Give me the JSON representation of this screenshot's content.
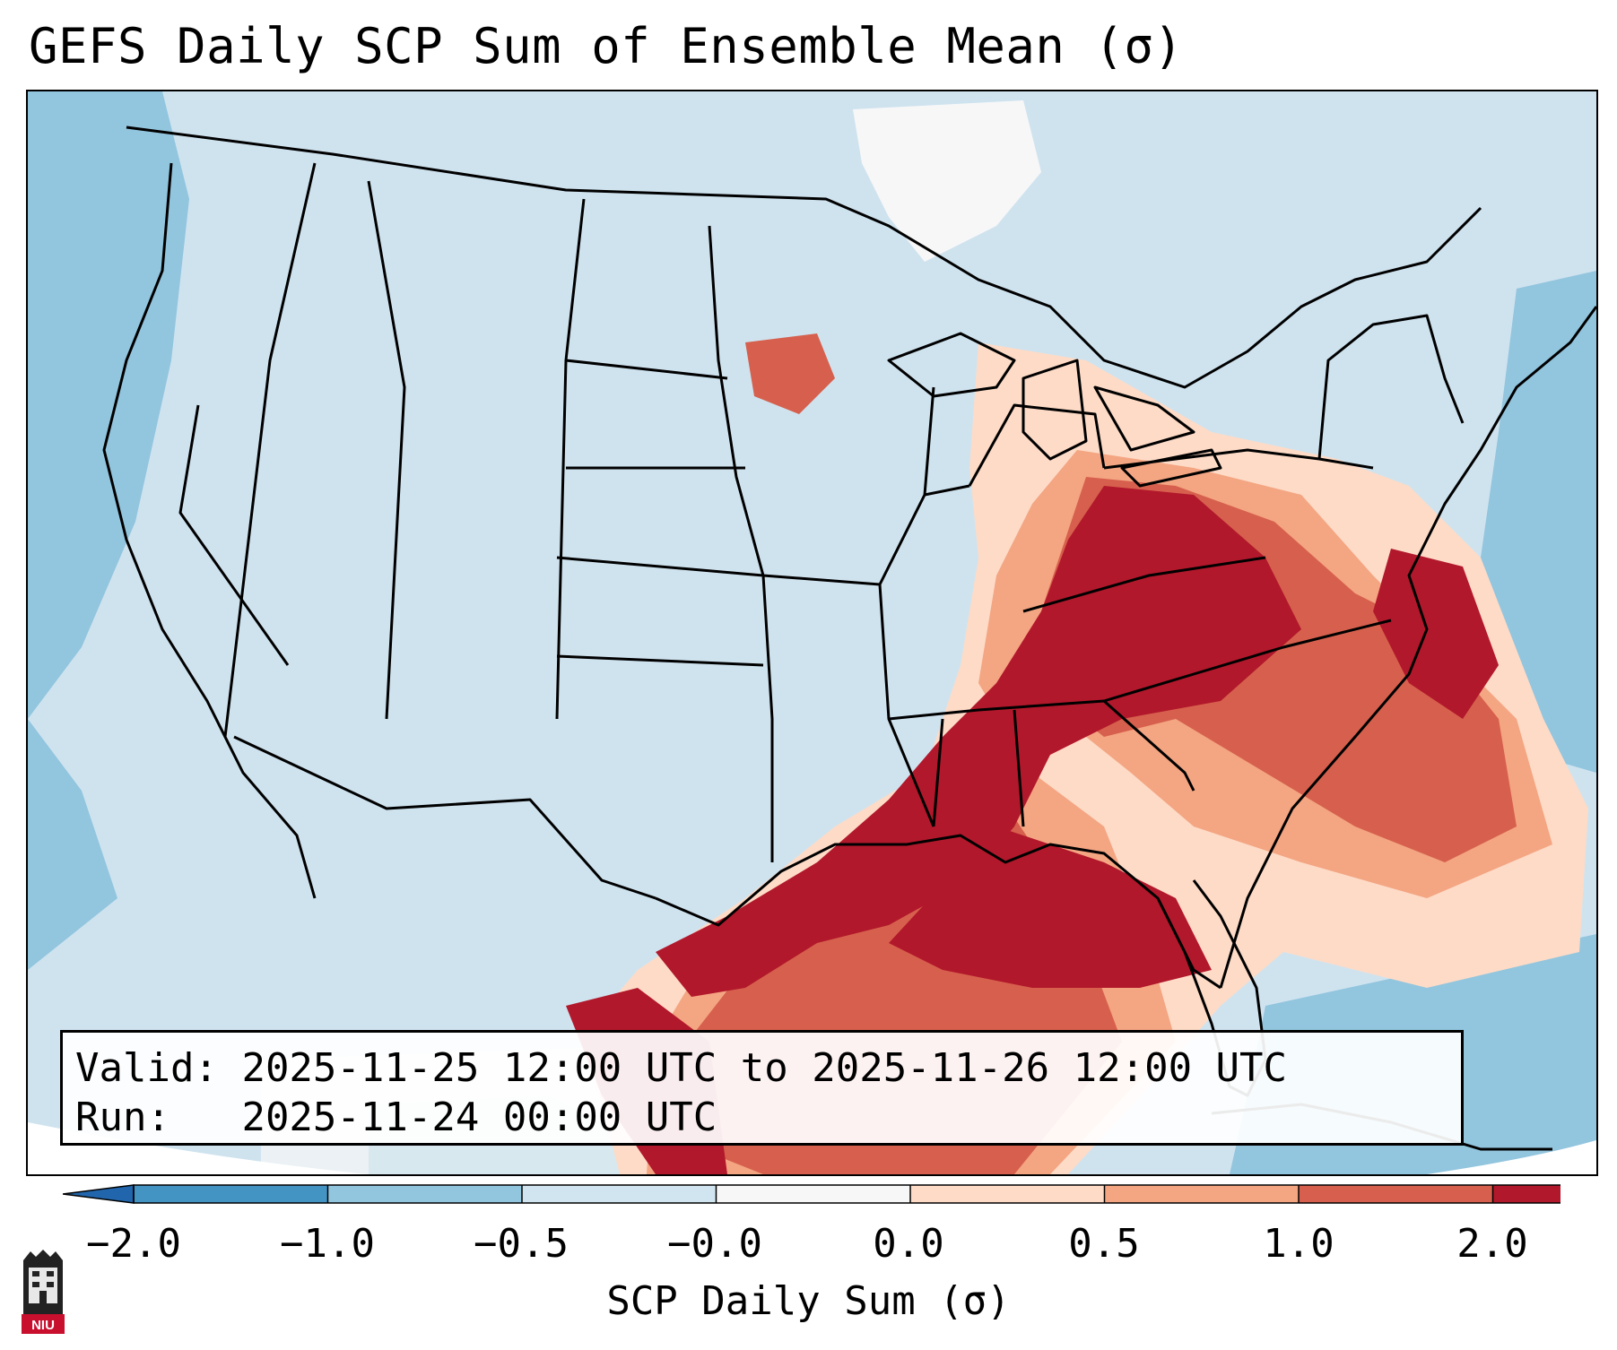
{
  "title": "GEFS Daily SCP Sum of Ensemble Mean (σ)",
  "info": {
    "valid_label": "Valid:",
    "valid_value": "2025-11-25 12:00 UTC to 2025-11-26 12:00 UTC",
    "run_label": "Run:",
    "run_value": "2025-11-24 00:00 UTC"
  },
  "colorbar": {
    "label": "SCP Daily Sum (σ)",
    "ticks": [
      "−2.0",
      "−1.0",
      "−0.5",
      "−0.0",
      "0.0",
      "0.5",
      "1.0",
      "2.0"
    ],
    "colors": [
      "#4393c3",
      "#92c5de",
      "#d1e5f0",
      "#f7f7f7",
      "#fddbc7",
      "#f4a582",
      "#d6604d",
      "#b2182b"
    ],
    "extend": "both"
  },
  "map": {
    "projection": "Lambert conformal, CONUS",
    "background_level": "−0.5 to −0.0",
    "max_region": "Southeast US / Lower Mississippi Valley / Gulf Coast"
  },
  "logo_text": "NIU"
}
